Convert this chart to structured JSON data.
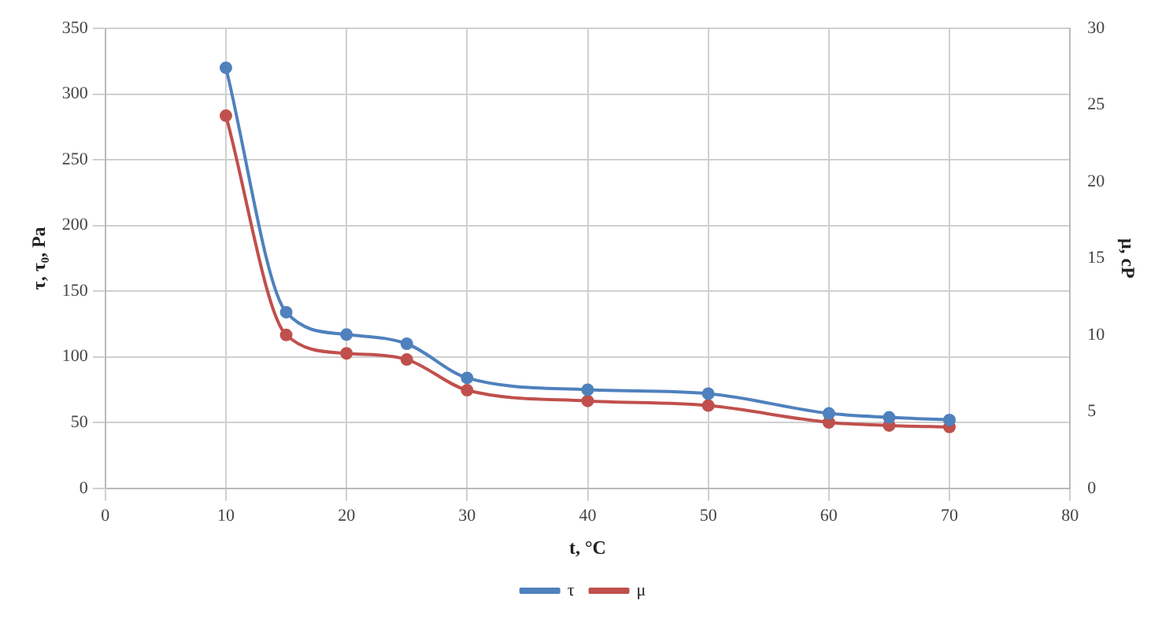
{
  "chart_data": {
    "type": "line",
    "xlabel": "t, °C",
    "ylabel": "τ, τ₀, Pa",
    "y2label": "μ, cP",
    "xlim": [
      0,
      80
    ],
    "xticks": [
      0,
      10,
      20,
      30,
      40,
      50,
      60,
      70,
      80
    ],
    "ylim": [
      0,
      350
    ],
    "yticks": [
      0,
      50,
      100,
      150,
      200,
      250,
      300,
      350
    ],
    "y2lim": [
      0,
      30
    ],
    "y2ticks": [
      0,
      5,
      10,
      15,
      20,
      25,
      30
    ],
    "x": [
      10,
      15,
      20,
      25,
      30,
      40,
      50,
      60,
      65,
      70
    ],
    "series": [
      {
        "name": "τ",
        "color": "#4f81bd",
        "values": [
          320,
          134,
          117,
          110,
          84,
          75,
          72,
          57,
          54,
          52
        ]
      },
      {
        "name": "μ",
        "color": "#c0504d",
        "axis": "y2",
        "values": [
          24.3,
          10.0,
          8.8,
          8.4,
          6.4,
          5.7,
          5.4,
          4.3,
          4.1,
          4.0
        ]
      }
    ],
    "grid": true,
    "legend": "bottom",
    "marker": "circle",
    "line_style": "solid"
  }
}
